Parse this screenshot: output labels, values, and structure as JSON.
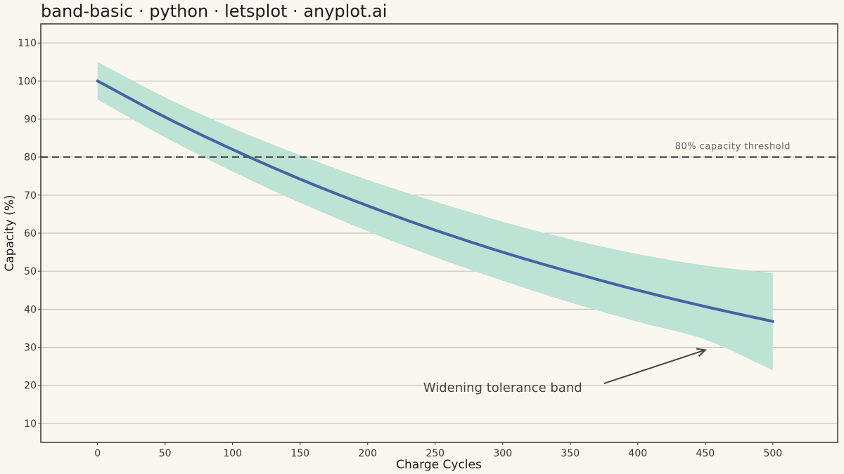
{
  "chart_data": {
    "type": "area",
    "title": "band-basic · python · letsplot · anyplot.ai",
    "xlabel": "Charge Cycles",
    "ylabel": "Capacity (%)",
    "xlim": [
      -42,
      548
    ],
    "ylim": [
      5,
      115
    ],
    "x_ticks": [
      0,
      50,
      100,
      150,
      200,
      250,
      300,
      350,
      400,
      450,
      500
    ],
    "y_ticks": [
      10,
      20,
      30,
      40,
      50,
      60,
      70,
      80,
      90,
      100,
      110
    ],
    "grid": {
      "horizontal": true,
      "vertical": false
    },
    "colors": {
      "line": "#4563a6",
      "band": "#bce3d3",
      "threshold": "#555555",
      "background": "#faf7f1"
    },
    "series": [
      {
        "kind": "line",
        "x": [
          0,
          50,
          100,
          150,
          200,
          250,
          300,
          350,
          400,
          450,
          500
        ],
        "y": [
          100,
          90.5,
          82,
          74.2,
          67.2,
          60.8,
          55,
          49.8,
          45,
          40.7,
          36.8
        ]
      },
      {
        "kind": "band",
        "x": [
          0,
          50,
          100,
          150,
          200,
          250,
          300,
          350,
          400,
          450,
          500
        ],
        "lower": [
          95.1,
          85.2,
          76.2,
          68,
          60.5,
          53.7,
          47.5,
          41.8,
          36.7,
          32,
          24
        ],
        "upper": [
          105,
          95.7,
          87.6,
          80.5,
          74,
          68.3,
          63,
          58.4,
          54.5,
          51.5,
          49.5
        ]
      }
    ],
    "threshold": {
      "y": 80,
      "label": "80% capacity threshold"
    },
    "annotation": {
      "text": "Widening tolerance band",
      "text_x": 300,
      "text_y": 18.3,
      "arrow_from": [
        375,
        20.5
      ],
      "arrow_to": [
        450,
        29.3
      ]
    }
  }
}
